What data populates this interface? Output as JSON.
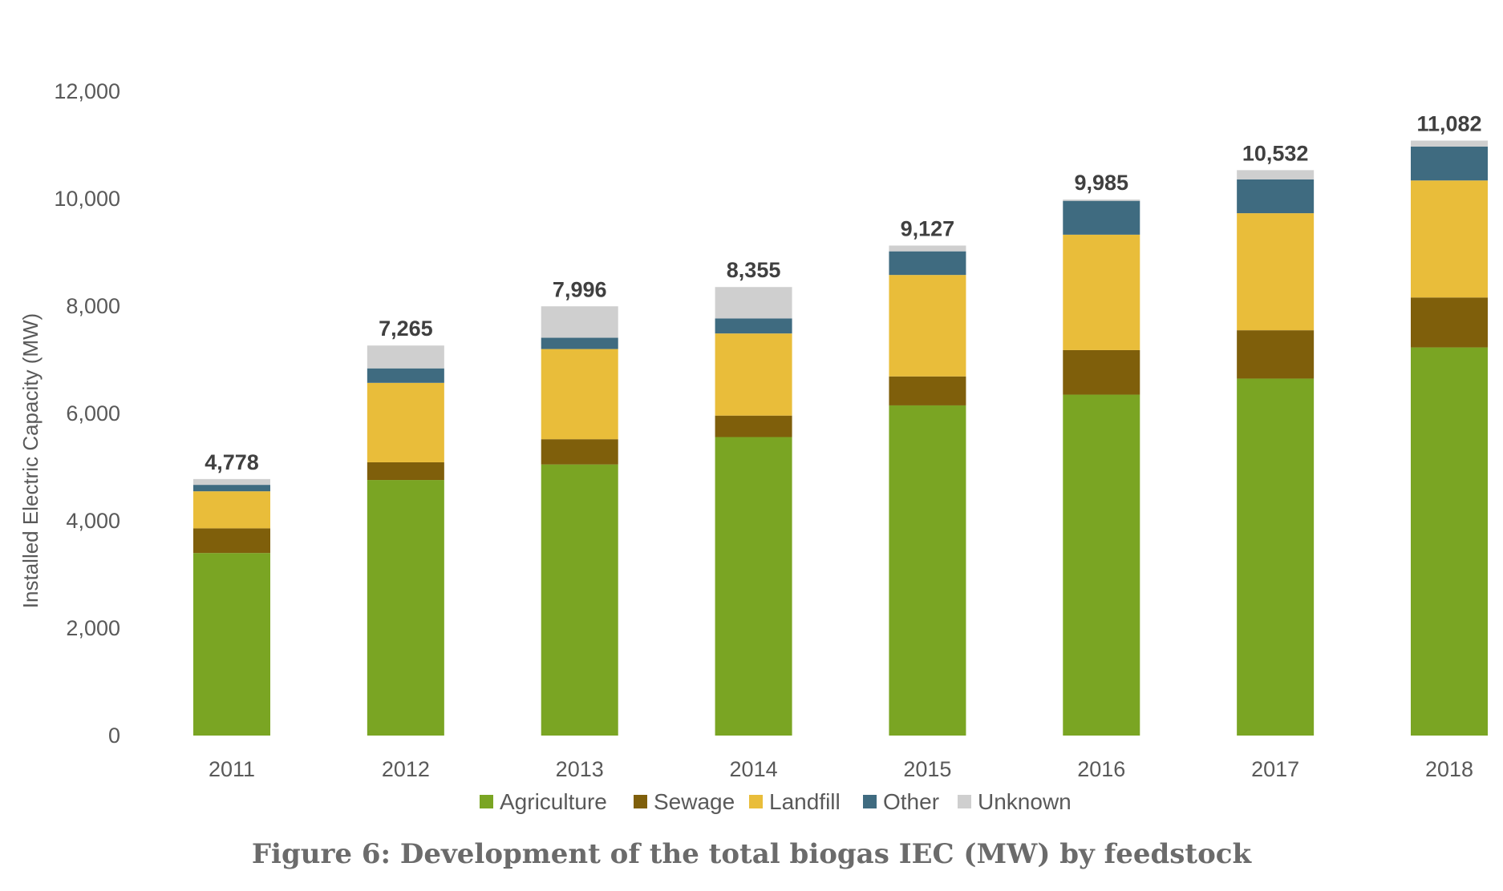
{
  "caption": "Figure 6: Development of the total biogas IEC (MW) by feedstock",
  "chart_data": {
    "type": "bar",
    "stacked": true,
    "title": "",
    "xlabel": "",
    "ylabel": "Installed Electric Capacity (MW)",
    "ylim": [
      0,
      12000
    ],
    "yticks": [
      0,
      2000,
      4000,
      6000,
      8000,
      10000,
      12000
    ],
    "ytick_labels": [
      "0",
      "2,000",
      "4,000",
      "6,000",
      "8,000",
      "10,000",
      "12,000"
    ],
    "grid": false,
    "legend_position": "bottom",
    "categories": [
      "2011",
      "2012",
      "2013",
      "2014",
      "2015",
      "2016",
      "2017",
      "2018"
    ],
    "series": [
      {
        "name": "Agriculture",
        "color": "#7aa523",
        "values": [
          3400,
          4760,
          5050,
          5560,
          6150,
          6350,
          6650,
          7230
        ]
      },
      {
        "name": "Sewage",
        "color": "#7f5f0b",
        "values": [
          460,
          330,
          470,
          400,
          540,
          830,
          900,
          930
        ]
      },
      {
        "name": "Landfill",
        "color": "#e9bd3a",
        "values": [
          690,
          1480,
          1680,
          1530,
          1890,
          2150,
          2180,
          2180
        ]
      },
      {
        "name": "Other",
        "color": "#3f6b80",
        "values": [
          120,
          270,
          210,
          280,
          440,
          630,
          630,
          630
        ]
      },
      {
        "name": "Unknown",
        "color": "#cfcfcf",
        "values": [
          108,
          425,
          586,
          585,
          107,
          25,
          172,
          112
        ]
      }
    ],
    "totals": [
      4778,
      7265,
      7996,
      8355,
      9127,
      9985,
      10532,
      11082
    ],
    "total_labels": [
      "4,778",
      "7,265",
      "7,996",
      "8,355",
      "9,127",
      "9,985",
      "10,532",
      "11,082"
    ]
  }
}
